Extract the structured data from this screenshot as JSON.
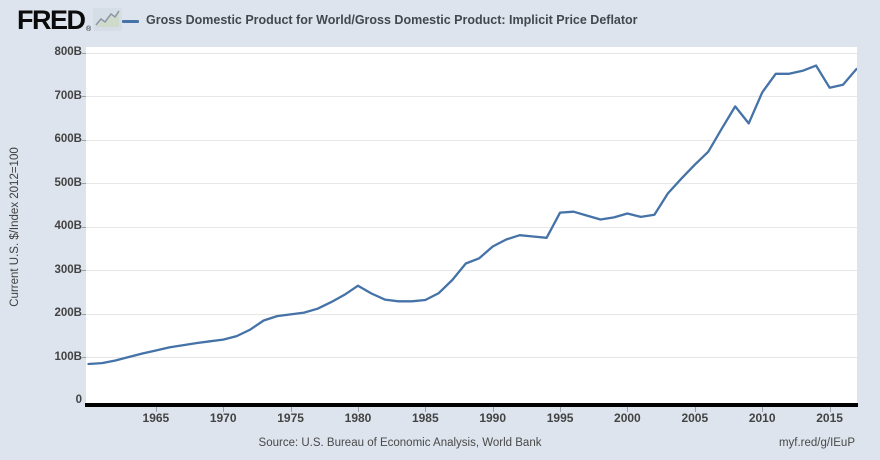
{
  "header": {
    "logo_text": "FRED",
    "registered_mark": "®",
    "legend_label": "Gross Domestic Product for World/Gross Domestic Product: Implicit Price Deflator"
  },
  "y_axis": {
    "label": "Current U.S. $/Index 2012=100",
    "ticks": [
      {
        "label": "800B",
        "value": 800
      },
      {
        "label": "700B",
        "value": 700
      },
      {
        "label": "600B",
        "value": 600
      },
      {
        "label": "500B",
        "value": 500
      },
      {
        "label": "400B",
        "value": 400
      },
      {
        "label": "300B",
        "value": 300
      },
      {
        "label": "200B",
        "value": 200
      },
      {
        "label": "100B",
        "value": 100
      },
      {
        "label": "0",
        "value": 0
      }
    ]
  },
  "x_axis": {
    "ticks": [
      1965,
      1970,
      1975,
      1980,
      1985,
      1990,
      1995,
      2000,
      2005,
      2010,
      2015
    ]
  },
  "footer": {
    "source": "Source: U.S. Bureau of Economic Analysis, World Bank",
    "link": "myf.red/g/IEuP"
  },
  "colors": {
    "background": "#dde4ed",
    "plot_background": "#ffffff",
    "line": "#4572a7",
    "grid": "#e7e7e7",
    "axis": "#000000",
    "text": "#434343"
  },
  "chart_data": {
    "type": "line",
    "title": "Gross Domestic Product for World/Gross Domestic Product: Implicit Price Deflator",
    "xlabel": "",
    "ylabel": "Current U.S. $/Index 2012=100",
    "unit": "B",
    "grid": true,
    "legend_position": "top",
    "xlim": [
      1960,
      2017
    ],
    "ylim": [
      0,
      800
    ],
    "x": [
      1960,
      1961,
      1962,
      1963,
      1964,
      1965,
      1966,
      1967,
      1968,
      1969,
      1970,
      1971,
      1972,
      1973,
      1974,
      1975,
      1976,
      1977,
      1978,
      1979,
      1980,
      1981,
      1982,
      1983,
      1984,
      1985,
      1986,
      1987,
      1988,
      1989,
      1990,
      1991,
      1992,
      1993,
      1994,
      1995,
      1996,
      1997,
      1998,
      1999,
      2000,
      2001,
      2002,
      2003,
      2004,
      2005,
      2006,
      2007,
      2008,
      2009,
      2010,
      2011,
      2012,
      2013,
      2014,
      2015,
      2016,
      2017
    ],
    "values": [
      84,
      86,
      92,
      100,
      108,
      115,
      122,
      127,
      132,
      136,
      140,
      148,
      163,
      184,
      194,
      198,
      202,
      211,
      226,
      243,
      264,
      246,
      232,
      228,
      228,
      231,
      247,
      277,
      315,
      327,
      354,
      370,
      380,
      377,
      374,
      432,
      434,
      425,
      416,
      421,
      430,
      422,
      427,
      476,
      510,
      542,
      572,
      625,
      676,
      637,
      708,
      751,
      751,
      758,
      770,
      719,
      726,
      762
    ]
  }
}
